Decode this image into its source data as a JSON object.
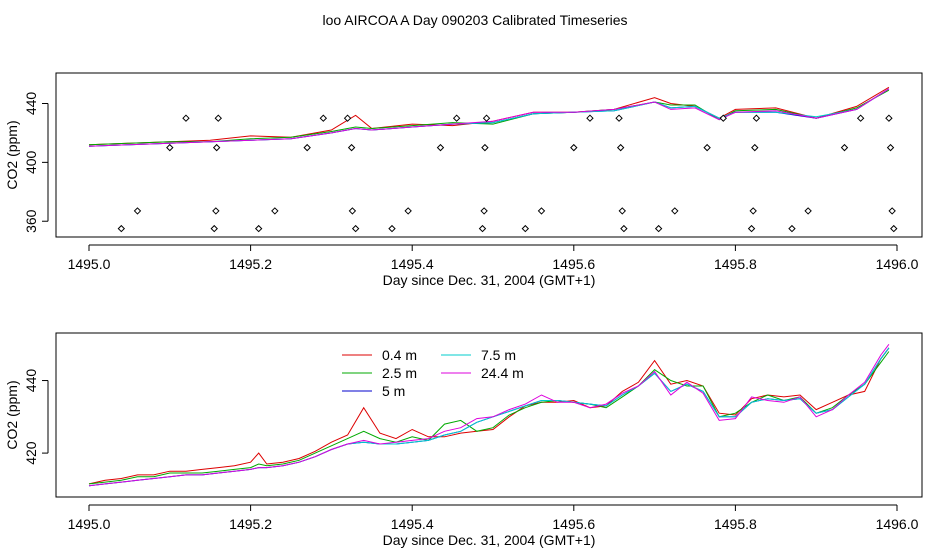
{
  "figure": {
    "title": "loo AIRCOA A  Day 090203  Calibrated Timeseries"
  },
  "chart_data": [
    {
      "type": "line",
      "title": "",
      "xlabel": "Day since Dec. 31, 2004 (GMT+1)",
      "ylabel": "CO2 (ppm)",
      "xlim": [
        1495.0,
        1496.0
      ],
      "ylim": [
        352,
        458
      ],
      "xticks": [
        "1495.0",
        "1495.2",
        "1495.4",
        "1495.6",
        "1495.8",
        "1496.0"
      ],
      "yticks": [
        "360",
        "400",
        "440"
      ],
      "grid": false,
      "legend": "none",
      "x": [
        1495.0,
        1495.05,
        1495.1,
        1495.15,
        1495.2,
        1495.25,
        1495.3,
        1495.33,
        1495.35,
        1495.4,
        1495.45,
        1495.5,
        1495.55,
        1495.6,
        1495.65,
        1495.7,
        1495.72,
        1495.75,
        1495.78,
        1495.8,
        1495.85,
        1495.9,
        1495.95,
        1495.99
      ],
      "series": [
        {
          "name": "",
          "color": "#dd0000",
          "values": [
            412,
            413,
            414,
            415,
            418,
            417,
            422,
            432,
            423,
            426,
            425,
            428,
            434,
            434,
            436,
            444,
            440,
            438,
            430,
            436,
            437,
            430,
            438,
            451
          ]
        },
        {
          "name": "",
          "color": "#00aa00",
          "values": [
            412,
            413,
            414,
            414,
            416,
            417,
            421,
            424,
            423,
            425,
            427,
            426,
            433,
            434,
            436,
            441,
            439,
            439,
            429,
            435,
            436,
            430,
            437,
            449
          ]
        },
        {
          "name": "",
          "color": "#0000cc",
          "values": [
            411,
            412,
            413,
            414,
            415,
            416,
            420,
            423,
            422,
            424,
            426,
            427,
            433,
            434,
            435,
            441,
            437,
            438,
            430,
            434,
            434,
            430,
            436,
            450
          ]
        },
        {
          "name": "",
          "color": "#00cccc",
          "values": [
            411,
            412,
            413,
            414,
            415,
            416,
            420,
            423,
            422,
            424,
            426,
            427,
            433,
            434,
            435,
            441,
            437,
            438,
            430,
            434,
            434,
            431,
            436,
            450
          ]
        },
        {
          "name": "",
          "color": "#dd00dd",
          "values": [
            411,
            412,
            413,
            414,
            415,
            416,
            420,
            423,
            422,
            424,
            426,
            428,
            434,
            434,
            436,
            441,
            436,
            437,
            429,
            434,
            435,
            430,
            436,
            450
          ]
        }
      ],
      "points": [
        {
          "x": 1495.04,
          "y": 355
        },
        {
          "x": 1495.06,
          "y": 367
        },
        {
          "x": 1495.1,
          "y": 410
        },
        {
          "x": 1495.12,
          "y": 430
        },
        {
          "x": 1495.155,
          "y": 355
        },
        {
          "x": 1495.157,
          "y": 367
        },
        {
          "x": 1495.158,
          "y": 410
        },
        {
          "x": 1495.16,
          "y": 430
        },
        {
          "x": 1495.21,
          "y": 355
        },
        {
          "x": 1495.23,
          "y": 367
        },
        {
          "x": 1495.27,
          "y": 410
        },
        {
          "x": 1495.29,
          "y": 430
        },
        {
          "x": 1495.32,
          "y": 430
        },
        {
          "x": 1495.325,
          "y": 410
        },
        {
          "x": 1495.326,
          "y": 367
        },
        {
          "x": 1495.33,
          "y": 355
        },
        {
          "x": 1495.375,
          "y": 355
        },
        {
          "x": 1495.395,
          "y": 367
        },
        {
          "x": 1495.435,
          "y": 410
        },
        {
          "x": 1495.455,
          "y": 430
        },
        {
          "x": 1495.487,
          "y": 355
        },
        {
          "x": 1495.489,
          "y": 367
        },
        {
          "x": 1495.49,
          "y": 410
        },
        {
          "x": 1495.492,
          "y": 430
        },
        {
          "x": 1495.54,
          "y": 355
        },
        {
          "x": 1495.56,
          "y": 367
        },
        {
          "x": 1495.6,
          "y": 410
        },
        {
          "x": 1495.62,
          "y": 430
        },
        {
          "x": 1495.656,
          "y": 430
        },
        {
          "x": 1495.658,
          "y": 410
        },
        {
          "x": 1495.66,
          "y": 367
        },
        {
          "x": 1495.662,
          "y": 355
        },
        {
          "x": 1495.705,
          "y": 355
        },
        {
          "x": 1495.725,
          "y": 367
        },
        {
          "x": 1495.765,
          "y": 410
        },
        {
          "x": 1495.785,
          "y": 430
        },
        {
          "x": 1495.82,
          "y": 355
        },
        {
          "x": 1495.822,
          "y": 367
        },
        {
          "x": 1495.824,
          "y": 410
        },
        {
          "x": 1495.826,
          "y": 430
        },
        {
          "x": 1495.87,
          "y": 355
        },
        {
          "x": 1495.89,
          "y": 367
        },
        {
          "x": 1495.935,
          "y": 410
        },
        {
          "x": 1495.955,
          "y": 430
        },
        {
          "x": 1495.99,
          "y": 430
        },
        {
          "x": 1495.992,
          "y": 410
        },
        {
          "x": 1495.994,
          "y": 367
        },
        {
          "x": 1495.996,
          "y": 355
        }
      ]
    },
    {
      "type": "line",
      "title": "",
      "xlabel": "Day since Dec. 31, 2004 (GMT+1)",
      "ylabel": "CO2 (ppm)",
      "xlim": [
        1495.0,
        1496.0
      ],
      "ylim": [
        409,
        452
      ],
      "xticks": [
        "1495.0",
        "1495.2",
        "1495.4",
        "1495.6",
        "1495.8",
        "1496.0"
      ],
      "yticks": [
        "420",
        "440"
      ],
      "grid": false,
      "legend": "top-left",
      "x": [
        1495.0,
        1495.02,
        1495.04,
        1495.06,
        1495.08,
        1495.1,
        1495.12,
        1495.14,
        1495.16,
        1495.18,
        1495.2,
        1495.21,
        1495.22,
        1495.24,
        1495.26,
        1495.28,
        1495.3,
        1495.32,
        1495.34,
        1495.36,
        1495.38,
        1495.4,
        1495.42,
        1495.44,
        1495.46,
        1495.48,
        1495.5,
        1495.52,
        1495.54,
        1495.56,
        1495.58,
        1495.6,
        1495.62,
        1495.64,
        1495.66,
        1495.68,
        1495.7,
        1495.72,
        1495.74,
        1495.76,
        1495.78,
        1495.8,
        1495.82,
        1495.84,
        1495.86,
        1495.88,
        1495.9,
        1495.92,
        1495.94,
        1495.96,
        1495.98,
        1495.99
      ],
      "series": [
        {
          "name": "0.4 m",
          "color": "#dd0000",
          "values": [
            411.5,
            412.5,
            413,
            414,
            414,
            415,
            415,
            415.5,
            416,
            416.5,
            417.5,
            420,
            417,
            417.5,
            418.5,
            420.5,
            423,
            425,
            432.5,
            425.5,
            424,
            426.5,
            424.5,
            424.5,
            425.5,
            426,
            426.5,
            430,
            433,
            434,
            434,
            434.5,
            432.5,
            433,
            437,
            439.5,
            445.5,
            439,
            440,
            438.5,
            431,
            430.5,
            435,
            436,
            435.5,
            436,
            432,
            434,
            436,
            437,
            446,
            449
          ]
        },
        {
          "name": "2.5 m",
          "color": "#00aa00",
          "values": [
            411.5,
            412,
            412.5,
            413.5,
            413.5,
            414.5,
            414.5,
            414.5,
            415,
            415.5,
            416,
            417,
            416.5,
            417,
            418,
            420,
            422,
            424,
            426,
            424,
            423,
            424.5,
            423.5,
            428,
            429,
            426,
            427,
            430.5,
            432.5,
            434,
            434.5,
            434,
            433.5,
            432.5,
            435.5,
            438.5,
            443,
            440,
            438.5,
            438.5,
            430,
            431,
            434,
            436,
            434.5,
            435.5,
            431,
            432.5,
            436,
            439,
            445,
            448
          ]
        },
        {
          "name": "5 m",
          "color": "#0000cc",
          "values": [
            411,
            411.5,
            412,
            412.5,
            413,
            413.5,
            414,
            414,
            414.5,
            415,
            415.5,
            416,
            416,
            416.5,
            417.5,
            419,
            421,
            422.5,
            423,
            422.5,
            422.5,
            423,
            423.5,
            425,
            426,
            428.5,
            430,
            431.5,
            433,
            434.5,
            434.5,
            434,
            433.5,
            433,
            436,
            438.5,
            442,
            437,
            439,
            437,
            430,
            430,
            434,
            435,
            434.5,
            435,
            431,
            432,
            435.5,
            439,
            446,
            449
          ]
        },
        {
          "name": "7.5 m",
          "color": "#00cccc",
          "values": [
            411,
            411.5,
            412,
            412.5,
            413,
            413.5,
            414,
            414,
            414.5,
            415,
            415.5,
            416,
            416,
            416.5,
            417.5,
            419,
            421,
            422.5,
            423,
            422.5,
            422.5,
            423,
            423.5,
            425,
            426,
            428.5,
            430,
            431.5,
            433,
            434.5,
            434.5,
            434,
            433.5,
            433,
            436,
            438.5,
            442,
            437,
            439,
            437,
            430,
            430,
            434,
            435,
            434.5,
            435,
            431,
            432,
            435.5,
            439,
            446,
            449
          ]
        },
        {
          "name": "24.4 m",
          "color": "#dd00dd",
          "values": [
            411,
            411.5,
            412,
            412.5,
            413,
            413.5,
            414,
            414,
            414.5,
            415,
            415.5,
            416,
            416,
            416.5,
            417.5,
            419,
            421,
            422.5,
            423.5,
            422.5,
            423,
            423.5,
            424,
            426,
            427,
            429.5,
            430,
            432,
            433.5,
            436,
            434,
            434,
            432.5,
            433.5,
            436.5,
            438.5,
            442.5,
            436,
            439.5,
            436.5,
            429,
            429.5,
            435.5,
            434.5,
            434,
            435.5,
            430,
            432,
            436,
            439.5,
            447,
            450
          ]
        }
      ]
    }
  ]
}
